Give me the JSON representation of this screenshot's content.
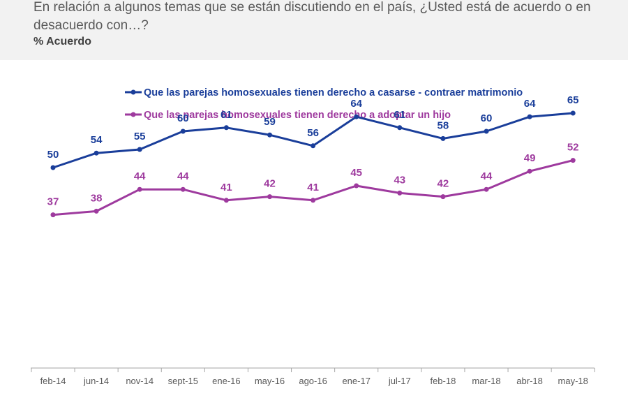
{
  "header": {
    "question": "En relación a algunos temas que se están discutiendo en el país, ¿Usted está de acuerdo o en desacuerdo con…?",
    "subtitle": "% Acuerdo"
  },
  "chart_data": {
    "type": "line",
    "categories": [
      "feb-14",
      "jun-14",
      "nov-14",
      "sept-15",
      "ene-16",
      "may-16",
      "ago-16",
      "ene-17",
      "jul-17",
      "feb-18",
      "mar-18",
      "abr-18",
      "may-18"
    ],
    "series": [
      {
        "name": "Que las parejas homosexuales tienen derecho a casarse  - contraer matrimonio",
        "color": "#1a3e9a",
        "values": [
          50,
          54,
          55,
          60,
          61,
          59,
          56,
          64,
          61,
          58,
          60,
          64,
          65
        ]
      },
      {
        "name": "Que las parejas homosexuales tienen derecho a adoptar un hijo",
        "color": "#9e3a9e",
        "values": [
          37,
          38,
          44,
          44,
          41,
          42,
          41,
          45,
          43,
          42,
          44,
          49,
          52
        ]
      }
    ],
    "legend_position": "top-left",
    "grid": false,
    "data_labels": true
  }
}
